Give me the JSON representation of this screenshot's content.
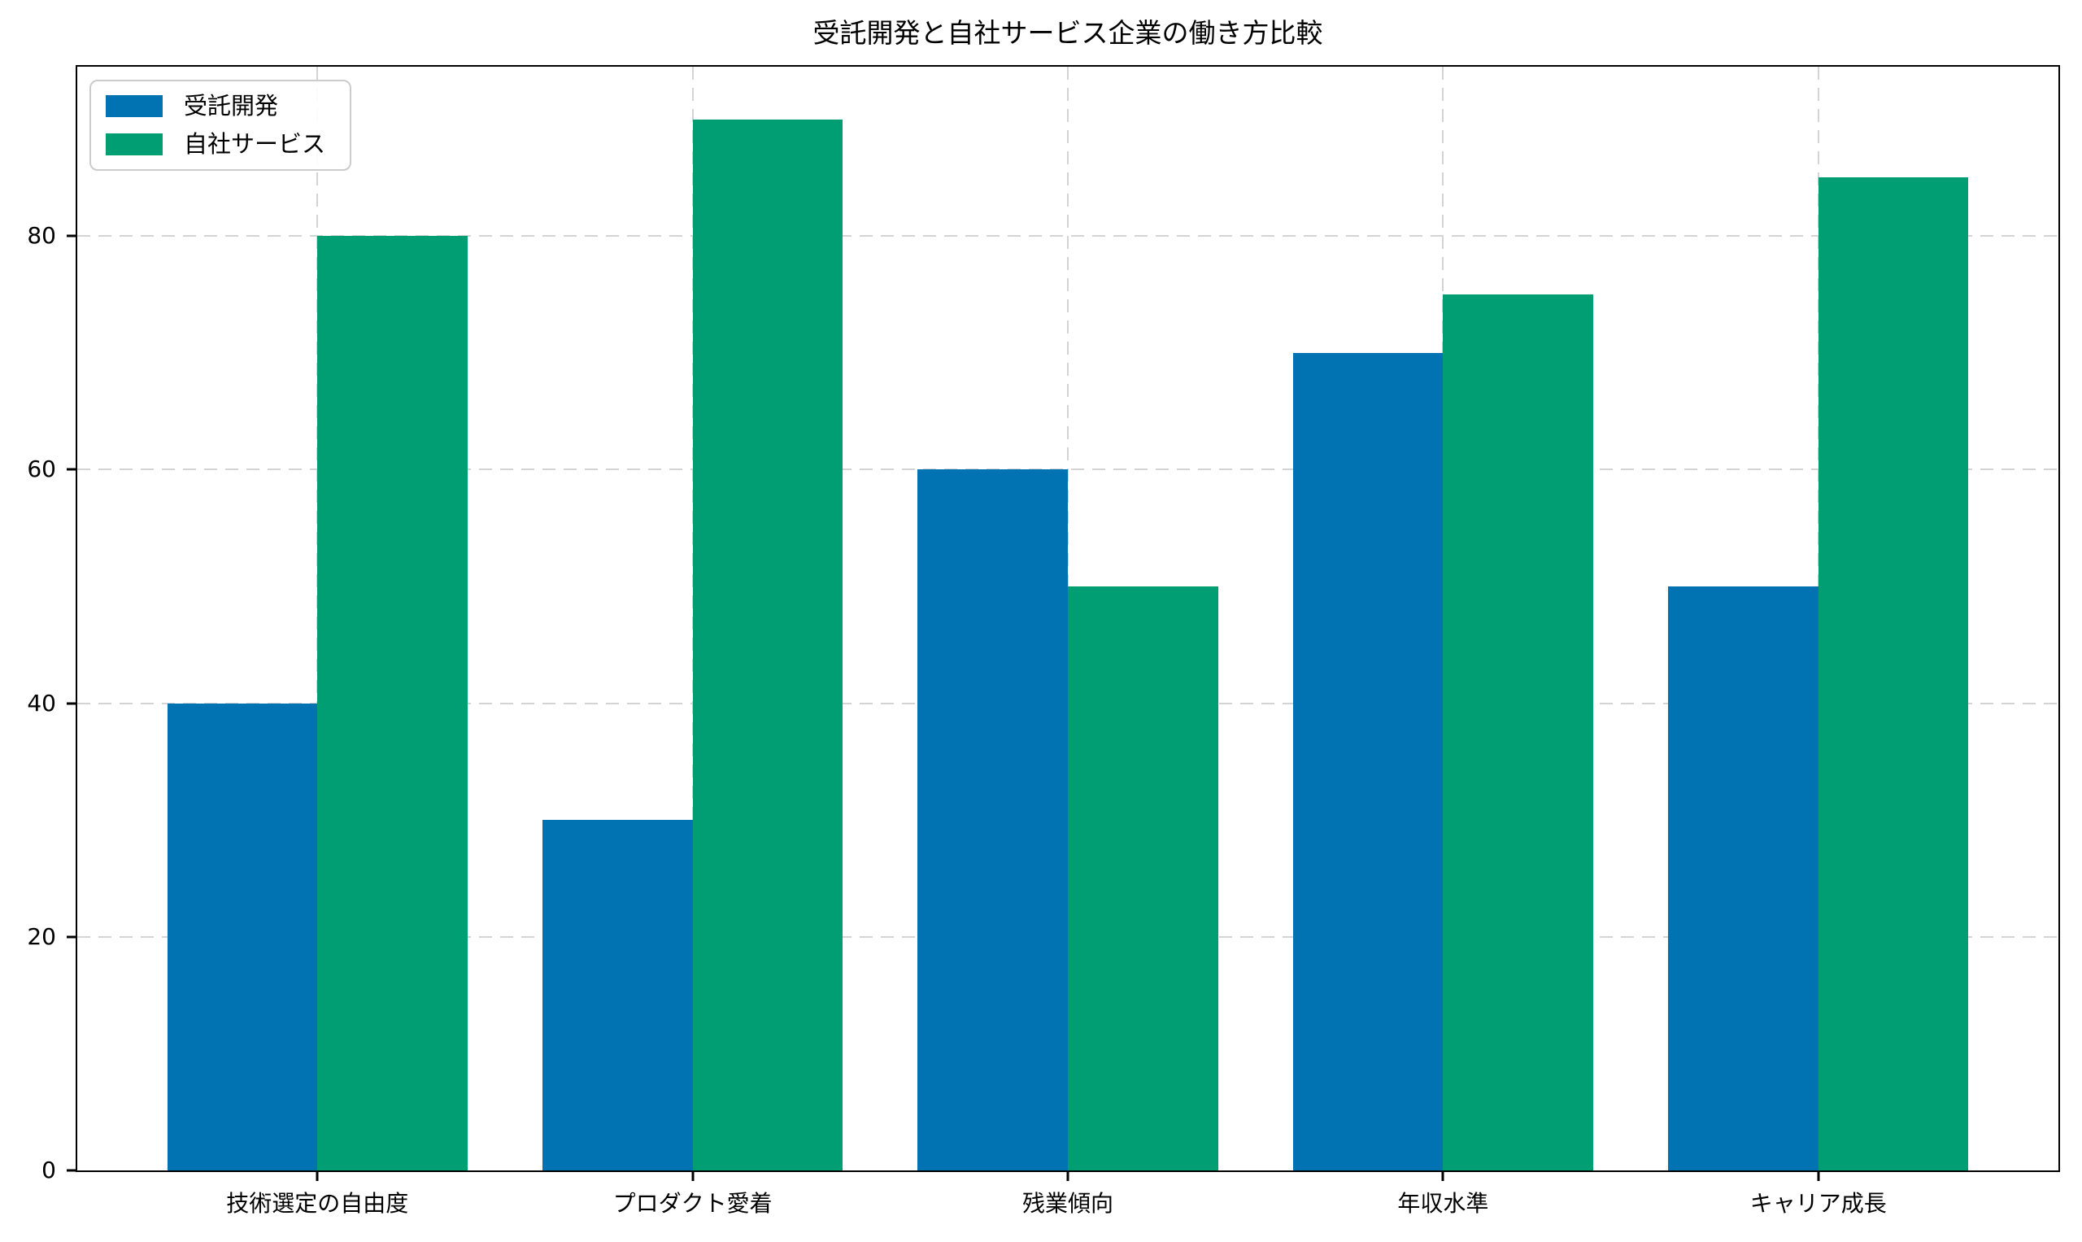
{
  "chart_data": {
    "type": "bar",
    "title": "受託開発と自社サービス企業の働き方比較",
    "categories": [
      "技術選定の自由度",
      "プロダクト愛着",
      "残業傾向",
      "年収水準",
      "キャリア成長"
    ],
    "series": [
      {
        "name": "受託開発",
        "color": "#0173b2",
        "values": [
          40,
          30,
          60,
          70,
          50
        ]
      },
      {
        "name": "自社サービス",
        "color": "#029e73",
        "values": [
          80,
          90,
          50,
          75,
          85
        ]
      }
    ],
    "xlabel": "",
    "ylabel": "",
    "ylim": [
      0,
      94.5
    ],
    "yticks": [
      0,
      20,
      40,
      60,
      80
    ],
    "grid": "dashed horizontal and vertical gridlines, light gray, below bars",
    "legend_position": "upper left",
    "bar_width_data_units": 0.4,
    "xlim": [
      -0.64,
      4.64
    ]
  },
  "colors": {
    "background": "#ffffff",
    "spine": "#000000",
    "grid": "#d4d4d4",
    "text": "#000000",
    "legend_border": "#cccccc"
  }
}
